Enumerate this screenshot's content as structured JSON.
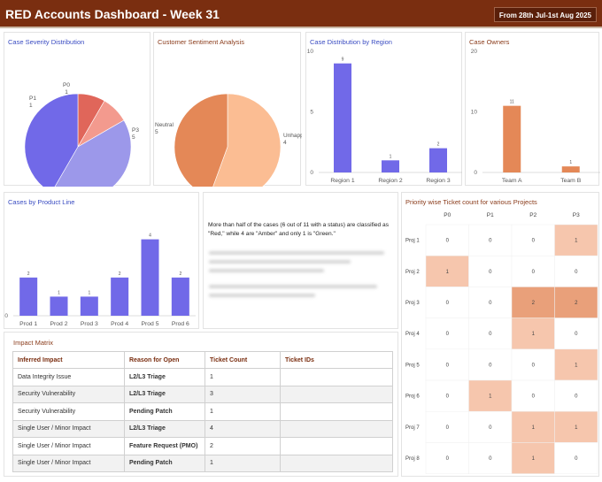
{
  "header": {
    "title": "RED Accounts Dashboard - Week 31",
    "date_range": "From 28th Jul-1st Aug 2025"
  },
  "panels": {
    "severity": "Case Severity Distribution",
    "sentiment": "Customer Sentiment Analysis",
    "region": "Case Distribution by Region",
    "owners": "Case Owners",
    "product": "Cases by Product Line",
    "heatmap": "Priority wise Ticket count for various Projects",
    "impact": "Impact Matrix"
  },
  "summary_text": "More than half of the cases (6 out of 11 with a status) are classified as \"Red,\" while 4 are \"Amber\" and only 1 is \"Green.\"",
  "chart_data": [
    {
      "type": "pie",
      "title": "Case Severity Distribution",
      "labels": [
        "P0",
        "P1",
        "P2",
        "P3"
      ],
      "values": [
        1,
        1,
        5,
        5
      ],
      "colors": [
        "#e0665a",
        "#f39a8e",
        "#9c98ea",
        "#7169e8"
      ]
    },
    {
      "type": "pie",
      "title": "Customer Sentiment Analysis",
      "labels": [
        "Neutral",
        "Unhappy"
      ],
      "values": [
        5,
        4
      ],
      "colors": [
        "#fbbd93",
        "#e48857"
      ]
    },
    {
      "type": "bar",
      "title": "Case Distribution by Region",
      "categories": [
        "Region 1",
        "Region 2",
        "Region 3"
      ],
      "values": [
        9,
        1,
        2
      ],
      "ylim": [
        0,
        10
      ],
      "yticks": [
        0,
        5,
        10
      ],
      "color": "#7169e8"
    },
    {
      "type": "bar",
      "title": "Case Owners",
      "categories": [
        "Team A",
        "Team B"
      ],
      "values": [
        11,
        1
      ],
      "ylim": [
        0,
        20
      ],
      "yticks": [
        0,
        10,
        20
      ],
      "color": "#e48857"
    },
    {
      "type": "bar",
      "title": "Cases by Product Line",
      "categories": [
        "Prod 1",
        "Prod 2",
        "Prod 3",
        "Prod 4",
        "Prod 5",
        "Prod 6"
      ],
      "values": [
        2,
        1,
        1,
        2,
        4,
        2
      ],
      "ylim": [
        0,
        5
      ],
      "yticks": [
        0
      ],
      "color": "#7169e8"
    },
    {
      "type": "heatmap",
      "title": "Priority wise Ticket count for various Projects",
      "columns": [
        "P0",
        "P1",
        "P2",
        "P3"
      ],
      "rows": [
        "Proj 1",
        "Proj 2",
        "Proj 3",
        "Proj 4",
        "Proj 5",
        "Proj 6",
        "Proj 7",
        "Proj 8"
      ],
      "values": [
        [
          0,
          0,
          0,
          1
        ],
        [
          1,
          0,
          0,
          0
        ],
        [
          0,
          0,
          2,
          2
        ],
        [
          0,
          0,
          1,
          0
        ],
        [
          0,
          0,
          0,
          1
        ],
        [
          0,
          1,
          0,
          0
        ],
        [
          0,
          0,
          1,
          1
        ],
        [
          0,
          0,
          1,
          0
        ]
      ],
      "colors": {
        "zero": "#ffffff",
        "one": "#f6c6ad",
        "two": "#e9a07a"
      }
    }
  ],
  "impact_table": {
    "headers": [
      "Inferred Impact",
      "Reason for Open",
      "Ticket Count",
      "Ticket IDs"
    ],
    "rows": [
      [
        "Data Integrity Issue",
        "L2/L3 Triage",
        "1",
        ""
      ],
      [
        "Security Vulnerability",
        "L2/L3 Triage",
        "3",
        ""
      ],
      [
        "Security Vulnerability",
        "Pending Patch",
        "1",
        ""
      ],
      [
        "Single User / Minor Impact",
        "L2/L3 Triage",
        "4",
        ""
      ],
      [
        "Single User / Minor Impact",
        "Feature Request (PMO)",
        "2",
        ""
      ],
      [
        "Single User / Minor Impact",
        "Pending Patch",
        "1",
        ""
      ]
    ]
  }
}
